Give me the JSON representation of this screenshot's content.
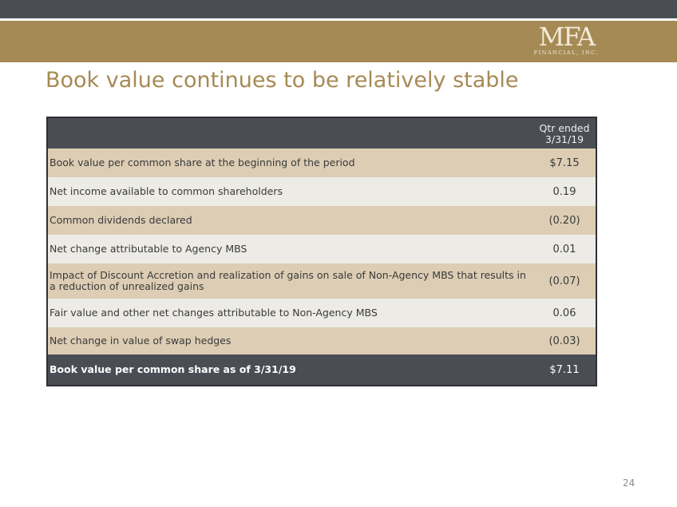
{
  "header": {
    "logo_text": "MFA",
    "logo_subtext": "FINANCIAL, INC."
  },
  "title": "Book value continues to be relatively stable",
  "table": {
    "column_header": "Qtr ended 3/31/19",
    "rows": [
      {
        "label": "Book value per common share at the beginning of the period",
        "value": "$7.15"
      },
      {
        "label": "Net income available to common shareholders",
        "value": "0.19"
      },
      {
        "label": "Common dividends declared",
        "value": "(0.20)"
      },
      {
        "label": "Net change attributable to Agency MBS",
        "value": "0.01"
      },
      {
        "label": "Impact of Discount Accretion and realization of gains on sale of Non-Agency MBS that results in a reduction of unrealized gains",
        "value": "(0.07)"
      },
      {
        "label": "Fair value and other net changes attributable to Non-Agency MBS",
        "value": "0.06"
      },
      {
        "label": "Net change in value of swap hedges",
        "value": "(0.03)"
      }
    ],
    "total": {
      "label": "Book value per common share as of 3/31/19",
      "value": "$7.11"
    }
  },
  "page_number": "24",
  "colors": {
    "brand_gold": "#a68a55",
    "dark_slate": "#4a4d54",
    "row_tan": "#dccdb4",
    "row_light": "#ecebe6"
  }
}
